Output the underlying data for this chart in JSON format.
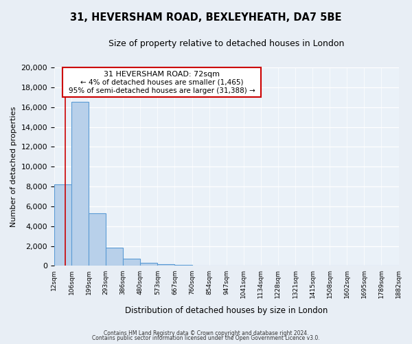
{
  "title": "31, HEVERSHAM ROAD, BEXLEYHEATH, DA7 5BE",
  "subtitle": "Size of property relative to detached houses in London",
  "bar_values": [
    8200,
    16550,
    5300,
    1800,
    700,
    280,
    200,
    100,
    0,
    0,
    0,
    0,
    0,
    0,
    0,
    0,
    0,
    0,
    0,
    0
  ],
  "bin_labels": [
    "12sqm",
    "106sqm",
    "199sqm",
    "293sqm",
    "386sqm",
    "480sqm",
    "573sqm",
    "667sqm",
    "760sqm",
    "854sqm",
    "947sqm",
    "1041sqm",
    "1134sqm",
    "1228sqm",
    "1321sqm",
    "1415sqm",
    "1508sqm",
    "1602sqm",
    "1695sqm",
    "1789sqm",
    "1882sqm"
  ],
  "n_bins": 20,
  "bar_color": "#b8d0ea",
  "bar_edge_color": "#5b9bd5",
  "ylim": [
    0,
    20000
  ],
  "yticks": [
    0,
    2000,
    4000,
    6000,
    8000,
    10000,
    12000,
    14000,
    16000,
    18000,
    20000
  ],
  "ylabel": "Number of detached properties",
  "xlabel": "Distribution of detached houses by size in London",
  "annotation_title": "31 HEVERSHAM ROAD: 72sqm",
  "annotation_line1": "← 4% of detached houses are smaller (1,465)",
  "annotation_line2": "95% of semi-detached houses are larger (31,388) →",
  "annotation_box_color": "#ffffff",
  "annotation_box_edge_color": "#cc0000",
  "red_line_bin": 0.65,
  "footer_line1": "Contains HM Land Registry data © Crown copyright and database right 2024.",
  "footer_line2": "Contains public sector information licensed under the Open Government Licence v3.0.",
  "background_color": "#e8eef5",
  "plot_background_color": "#eaf1f8"
}
